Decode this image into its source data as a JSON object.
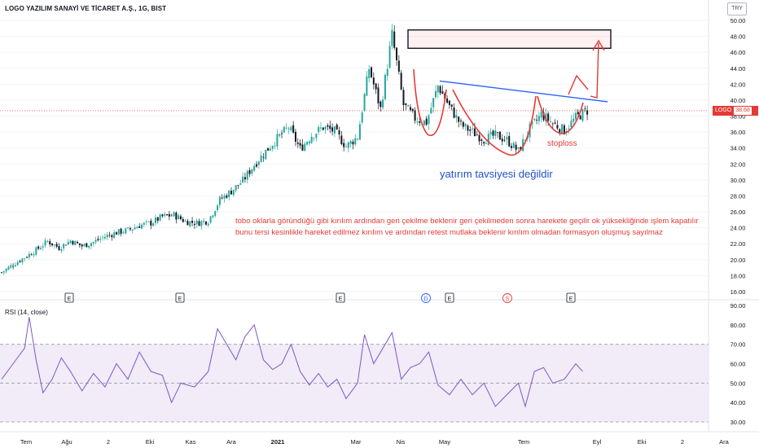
{
  "header": {
    "title": "LOGO YAZILIM SANAYİ VE TİCARET A.Ş., 1G, BIST",
    "currency": "TRY"
  },
  "price_badge": {
    "symbol": "LOGO",
    "value": "38.68"
  },
  "rsi_panel": {
    "label": "RSI (14, close)"
  },
  "annotations": {
    "note_line1": "tobo oklarla göründüğü gibi kırılım ardından geri çekilme beklenir geri çekilmeden sonra harekete geçilir ok yüksekliğinde işlem kapatılır",
    "note_line2": "bunu tersi kesinlikle hareket edilmez kırılım ve ardından retest mutlaka beklenir kırılım olmadan formasyon oluşmuş sayılmaz",
    "stoploss": "stoploss",
    "disclaimer": "yatırım tavsiyesi değildir"
  },
  "event_markers": [
    {
      "label": "E",
      "kind": "earnings"
    },
    {
      "label": "E",
      "kind": "earnings"
    },
    {
      "label": "E",
      "kind": "earnings"
    },
    {
      "label": "D",
      "kind": "dividend"
    },
    {
      "label": "E",
      "kind": "earnings"
    },
    {
      "label": "S",
      "kind": "split"
    },
    {
      "label": "E",
      "kind": "earnings"
    }
  ],
  "colors": {
    "up": "#26a69a",
    "down": "#131722",
    "annotation": "#e53935",
    "trendline": "#2962ff",
    "rsi_line": "#7e57c2",
    "rsi_band": "#ede7f6",
    "grid": "#f0f3fa"
  },
  "chart_data": [
    {
      "type": "candlestick",
      "title": "LOGO YAZILIM SANAYİ VE TİCARET A.Ş., 1G, BIST",
      "x_tick_labels": [
        "Tem",
        "Ağu",
        "2",
        "Eki",
        "Kas",
        "Ara",
        "2021",
        "Mar",
        "Nis",
        "May",
        "Tem",
        "Eyl",
        "Eki",
        "2",
        "Ara"
      ],
      "y_tick_labels": [
        "16.00",
        "18.00",
        "20.00",
        "22.00",
        "24.00",
        "26.00",
        "28.00",
        "30.00",
        "32.00",
        "34.00",
        "36.00",
        "38.00",
        "40.00",
        "42.00",
        "44.00",
        "46.00",
        "48.00",
        "50.00"
      ],
      "ylim": [
        16,
        50
      ],
      "last_price": 38.68,
      "close_series": [
        [
          0,
          18.4
        ],
        [
          5,
          19.4
        ],
        [
          10,
          20.3
        ],
        [
          15,
          21.2
        ],
        [
          20,
          22.3
        ],
        [
          25,
          21.5
        ],
        [
          30,
          22.4
        ],
        [
          35,
          21.7
        ],
        [
          40,
          22.2
        ],
        [
          45,
          22.9
        ],
        [
          50,
          23.4
        ],
        [
          55,
          23.7
        ],
        [
          60,
          24.3
        ],
        [
          65,
          24.6
        ],
        [
          70,
          25.4
        ],
        [
          75,
          25.6
        ],
        [
          80,
          24.8
        ],
        [
          85,
          24.6
        ],
        [
          90,
          24.9
        ],
        [
          95,
          27.5
        ],
        [
          100,
          28.6
        ],
        [
          105,
          29.9
        ],
        [
          110,
          31.9
        ],
        [
          115,
          33.6
        ],
        [
          120,
          35.2
        ],
        [
          125,
          36.6
        ],
        [
          130,
          33.9
        ],
        [
          135,
          35.6
        ],
        [
          140,
          36.6
        ],
        [
          145,
          36.1
        ],
        [
          150,
          34.2
        ],
        [
          155,
          35.4
        ],
        [
          160,
          44.0
        ],
        [
          165,
          38.9
        ],
        [
          170,
          48.2
        ],
        [
          175,
          39.4
        ],
        [
          180,
          37.7
        ],
        [
          185,
          37.2
        ],
        [
          190,
          41.8
        ],
        [
          195,
          39.2
        ],
        [
          200,
          36.9
        ],
        [
          205,
          36.0
        ],
        [
          210,
          35.1
        ],
        [
          215,
          35.6
        ],
        [
          220,
          35.0
        ],
        [
          225,
          33.6
        ],
        [
          230,
          36.4
        ],
        [
          235,
          38.2
        ],
        [
          240,
          37.1
        ],
        [
          245,
          36.2
        ],
        [
          250,
          37.8
        ],
        [
          255,
          38.7
        ]
      ],
      "drawings": {
        "target_box_price_range": [
          46.5,
          48.8
        ],
        "neckline_start_price": 42.4,
        "neckline_end_price": 39.8,
        "target_arrow_to_price": 47.6
      }
    },
    {
      "type": "line",
      "title": "RSI (14, close)",
      "y_tick_labels": [
        "30.00",
        "40.00",
        "50.00",
        "60.00",
        "70.00",
        "80.00",
        "90.00"
      ],
      "ylim": [
        30,
        90
      ],
      "upper_band": 70,
      "middle": 50,
      "lower_band": 30,
      "values": [
        [
          0,
          52
        ],
        [
          5,
          60
        ],
        [
          10,
          68
        ],
        [
          12,
          84
        ],
        [
          15,
          62
        ],
        [
          18,
          45
        ],
        [
          22,
          52
        ],
        [
          26,
          63
        ],
        [
          30,
          56
        ],
        [
          35,
          46
        ],
        [
          40,
          55
        ],
        [
          45,
          48
        ],
        [
          50,
          60
        ],
        [
          55,
          52
        ],
        [
          60,
          66
        ],
        [
          65,
          56
        ],
        [
          70,
          54
        ],
        [
          74,
          40
        ],
        [
          78,
          50
        ],
        [
          84,
          48
        ],
        [
          90,
          56
        ],
        [
          94,
          78
        ],
        [
          98,
          70
        ],
        [
          102,
          62
        ],
        [
          106,
          74
        ],
        [
          110,
          80
        ],
        [
          114,
          62
        ],
        [
          118,
          57
        ],
        [
          122,
          60
        ],
        [
          126,
          70
        ],
        [
          130,
          56
        ],
        [
          134,
          49
        ],
        [
          138,
          55
        ],
        [
          142,
          48
        ],
        [
          146,
          52
        ],
        [
          150,
          42
        ],
        [
          155,
          50
        ],
        [
          158,
          75
        ],
        [
          162,
          60
        ],
        [
          166,
          68
        ],
        [
          170,
          76
        ],
        [
          174,
          52
        ],
        [
          178,
          58
        ],
        [
          182,
          60
        ],
        [
          186,
          66
        ],
        [
          190,
          49
        ],
        [
          195,
          44
        ],
        [
          200,
          52
        ],
        [
          205,
          44
        ],
        [
          210,
          50
        ],
        [
          215,
          38
        ],
        [
          220,
          44
        ],
        [
          225,
          50
        ],
        [
          228,
          38
        ],
        [
          232,
          56
        ],
        [
          236,
          58
        ],
        [
          240,
          50
        ],
        [
          245,
          52
        ],
        [
          250,
          60
        ],
        [
          253,
          56
        ]
      ]
    }
  ]
}
